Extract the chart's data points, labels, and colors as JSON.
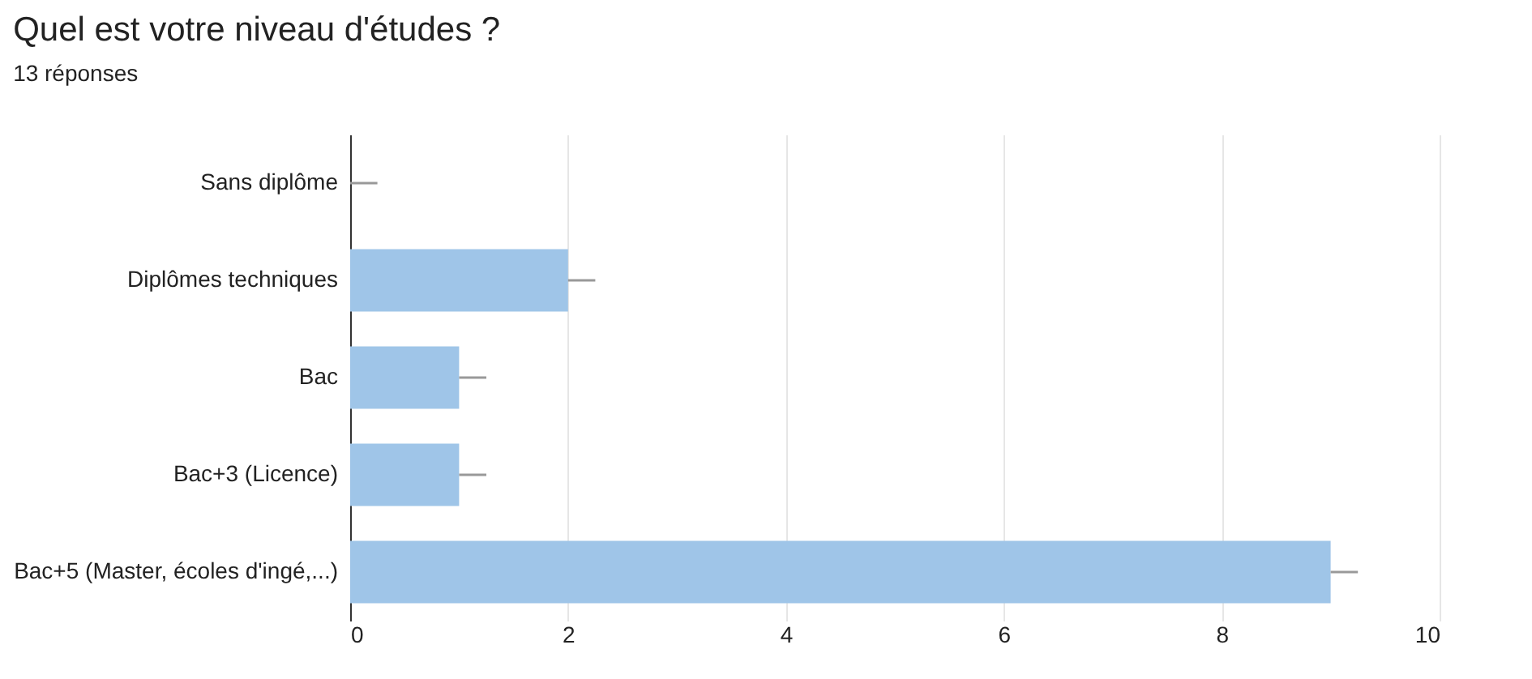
{
  "chart_data": {
    "type": "bar",
    "orientation": "horizontal",
    "title": "Quel est votre niveau d'études ?",
    "subtitle": "13 réponses",
    "categories": [
      "Sans diplôme",
      "Diplômes techniques",
      "Bac",
      "Bac+3 (Licence)",
      "Bac+5 (Master, écoles d'ingé,...)"
    ],
    "values": [
      0,
      2,
      1,
      1,
      9
    ],
    "errors": [
      [
        0,
        0.25
      ],
      [
        2,
        2.25
      ],
      [
        1,
        1.25
      ],
      [
        1,
        1.25
      ],
      [
        9,
        9.25
      ]
    ],
    "color": "#9fc5e8",
    "xlim": [
      0,
      10
    ],
    "xticks": [
      0,
      2,
      4,
      6,
      8,
      10
    ],
    "grid": "x"
  }
}
